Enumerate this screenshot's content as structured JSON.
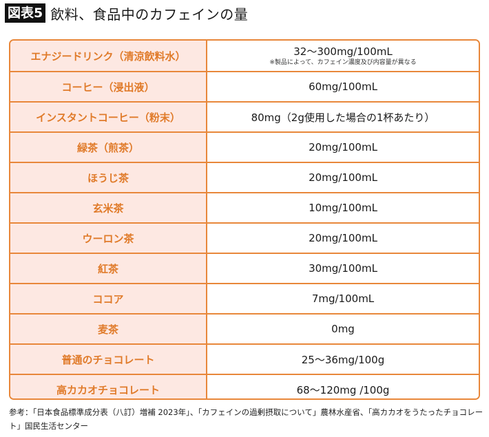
{
  "header": {
    "badge": "図表5",
    "title": "飲料、食品中のカフェインの量"
  },
  "table": {
    "rows": [
      {
        "item": "エナジードリンク（清涼飲料水）",
        "value": "32〜300mg/100mL",
        "note": "※製品によって、カフェイン濃度及び内容量が異なる"
      },
      {
        "item": "コーヒー（浸出液）",
        "value": "60mg/100mL"
      },
      {
        "item": "インスタントコーヒー（粉末）",
        "value": "80mg（2g使用した場合の1杯あたり）"
      },
      {
        "item": "緑茶（煎茶）",
        "value": "20mg/100mL"
      },
      {
        "item": "ほうじ茶",
        "value": "20mg/100mL"
      },
      {
        "item": "玄米茶",
        "value": "10mg/100mL"
      },
      {
        "item": "ウーロン茶",
        "value": "20mg/100mL"
      },
      {
        "item": "紅茶",
        "value": "30mg/100mL"
      },
      {
        "item": "ココア",
        "value": "7mg/100mL"
      },
      {
        "item": "麦茶",
        "value": "0mg"
      },
      {
        "item": "普通のチョコレート",
        "value": "25〜36mg/100g"
      },
      {
        "item": "高カカオチョコレート",
        "value": "68〜120mg /100g"
      }
    ]
  },
  "footnote": "参考：「日本食品標準成分表（八訂）増補 2023年」、「カフェインの過剰摂取について」農林水産省、「高カカオをうたったチョコレート」国民生活センター",
  "colors": {
    "accent": "#e8873a",
    "item_text": "#e07b2a",
    "item_bg": "#fde8e2",
    "badge_bg": "#111111"
  }
}
